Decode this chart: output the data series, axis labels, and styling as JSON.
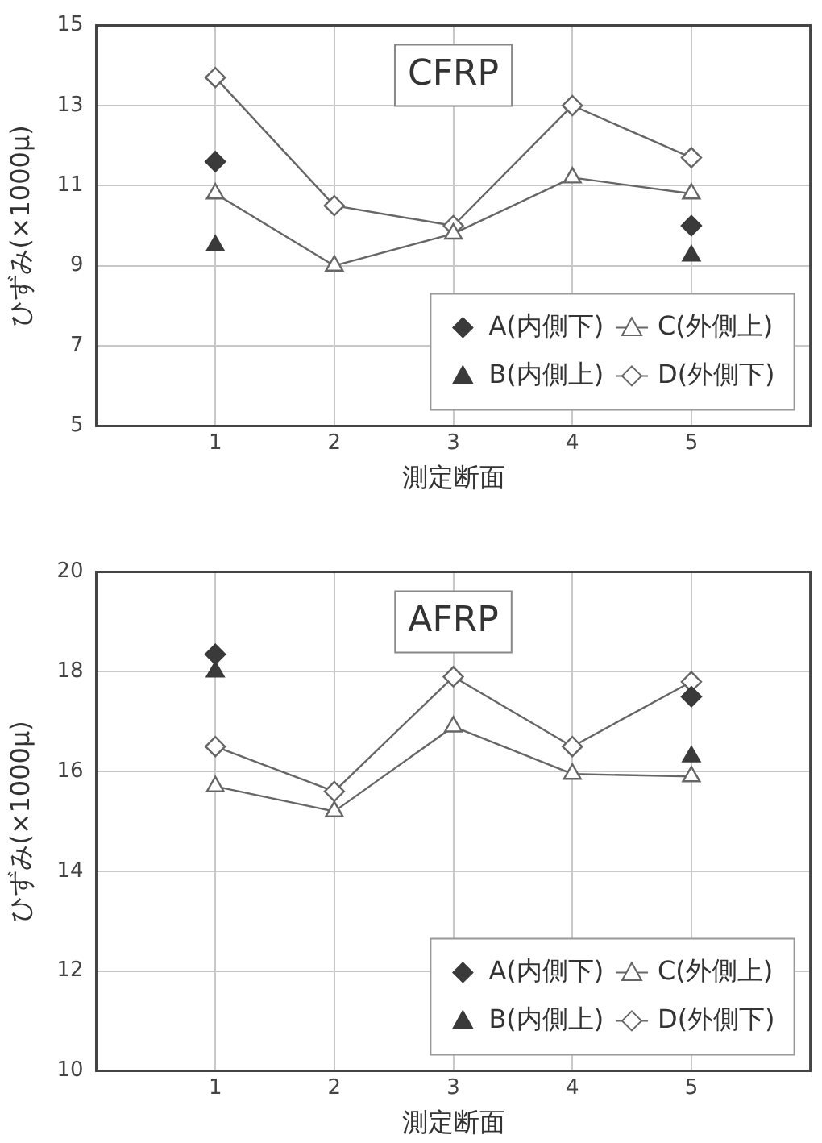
{
  "chart_data": [
    {
      "type": "line",
      "title": "CFRP",
      "xlabel": "測定断面",
      "ylabel": "ひずみ(×1000μ)",
      "x": [
        1,
        2,
        3,
        4,
        5
      ],
      "xlim": [
        0,
        6
      ],
      "xticks": [
        1,
        2,
        3,
        4,
        5
      ],
      "ylim": [
        5,
        15
      ],
      "yticks": [
        5,
        7,
        9,
        11,
        13,
        15
      ],
      "grid": true,
      "legend": "bottom right",
      "series": [
        {
          "name": "A(内側下)",
          "type": "scatter",
          "marker": "diamond",
          "color": "#3a3a3a",
          "values": [
            11.6,
            null,
            null,
            null,
            10.0
          ]
        },
        {
          "name": "B(内側上)",
          "type": "scatter",
          "marker": "triangle",
          "color": "#3a3a3a",
          "values": [
            9.5,
            null,
            null,
            null,
            9.25
          ]
        },
        {
          "name": "C(外側上)",
          "type": "line",
          "marker": "triangle",
          "color": "#666666",
          "values": [
            10.8,
            9.0,
            9.8,
            11.2,
            10.8
          ]
        },
        {
          "name": "D(外側下)",
          "type": "line",
          "marker": "diamond",
          "color": "#666666",
          "values": [
            13.7,
            10.5,
            10.0,
            13.0,
            11.7
          ]
        }
      ]
    },
    {
      "type": "line",
      "title": "AFRP",
      "xlabel": "測定断面",
      "ylabel": "ひずみ(×1000μ)",
      "x": [
        1,
        2,
        3,
        4,
        5
      ],
      "xlim": [
        0,
        6
      ],
      "xticks": [
        1,
        2,
        3,
        4,
        5
      ],
      "ylim": [
        10,
        20
      ],
      "yticks": [
        10,
        12,
        14,
        16,
        18,
        20
      ],
      "grid": true,
      "legend": "bottom right",
      "series": [
        {
          "name": "A(内側下)",
          "type": "scatter",
          "marker": "diamond",
          "color": "#3a3a3a",
          "values": [
            18.35,
            null,
            null,
            null,
            17.5
          ]
        },
        {
          "name": "B(内側上)",
          "type": "scatter",
          "marker": "triangle",
          "color": "#3a3a3a",
          "values": [
            18.0,
            null,
            null,
            null,
            16.3
          ]
        },
        {
          "name": "C(外側上)",
          "type": "line",
          "marker": "triangle",
          "color": "#666666",
          "values": [
            15.7,
            15.2,
            16.9,
            15.95,
            15.9
          ]
        },
        {
          "name": "D(外側下)",
          "type": "line",
          "marker": "diamond",
          "color": "#666666",
          "values": [
            16.5,
            15.6,
            17.9,
            16.5,
            17.8
          ]
        }
      ]
    }
  ]
}
